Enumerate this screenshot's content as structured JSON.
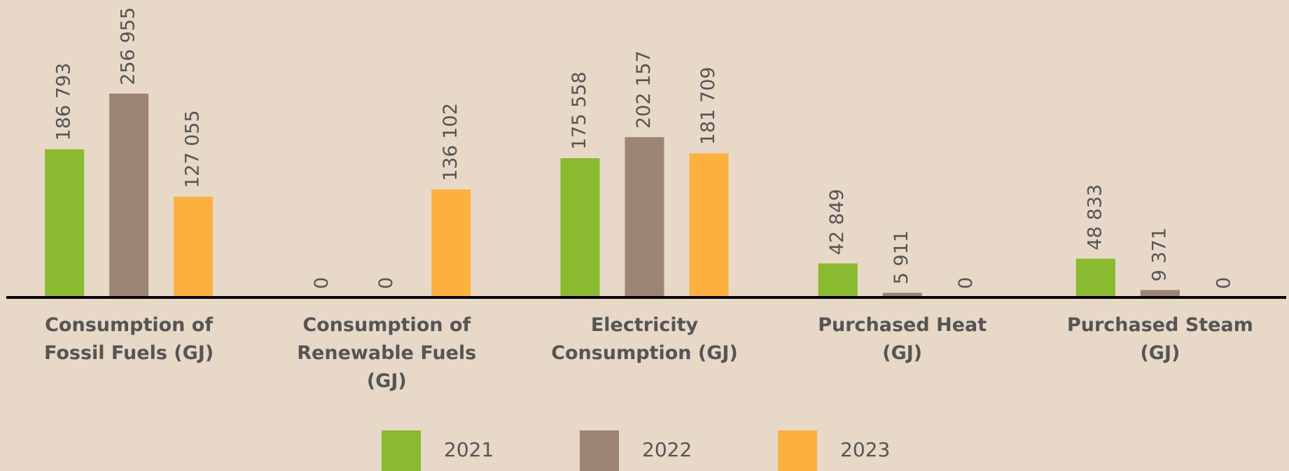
{
  "chart_data": {
    "type": "bar",
    "categories": [
      "Consumption of Fossil Fuels (GJ)",
      "Consumption of Renewable Fuels (GJ)",
      "Electricity Consumption (GJ)",
      "Purchased Heat (GJ)",
      "Purchased Steam (GJ)"
    ],
    "series": [
      {
        "name": "2021",
        "color": "#8aba2f",
        "values": [
          186793,
          0,
          175558,
          42849,
          48833
        ],
        "value_labels": [
          "186 793",
          "0",
          "175 558",
          "42 849",
          "48 833"
        ]
      },
      {
        "name": "2022",
        "color": "#9c8575",
        "values": [
          256955,
          0,
          202157,
          5911,
          9371
        ],
        "value_labels": [
          "256 955",
          "0",
          "202 157",
          "5 911",
          "9 371"
        ]
      },
      {
        "name": "2023",
        "color": "#fbb040",
        "values": [
          127055,
          136102,
          181709,
          0,
          0
        ],
        "value_labels": [
          "127 055",
          "136 102",
          "181 709",
          "0",
          "0"
        ]
      }
    ],
    "ylim": [
      0,
      300000
    ],
    "legend": "bottom"
  }
}
